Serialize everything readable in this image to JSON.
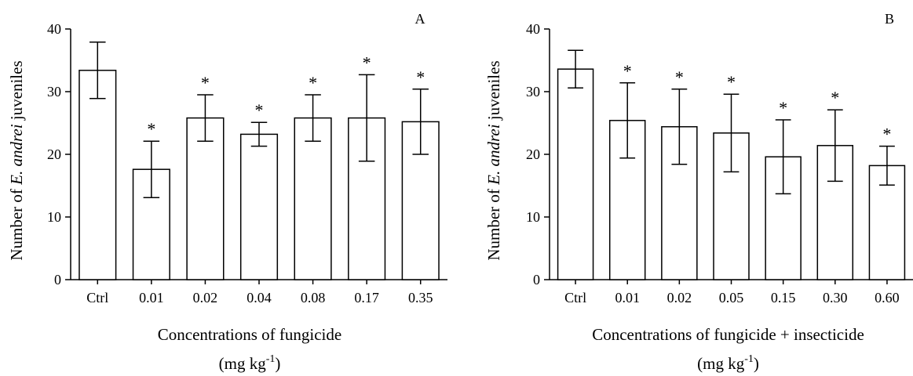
{
  "chart_data": [
    {
      "type": "bar",
      "panel_label": "A",
      "categories": [
        "Ctrl",
        "0.01",
        "0.02",
        "0.04",
        "0.08",
        "0.17",
        "0.35"
      ],
      "values": [
        33.4,
        17.6,
        25.8,
        23.2,
        25.8,
        25.8,
        25.2
      ],
      "error": [
        4.5,
        4.5,
        3.7,
        1.9,
        3.7,
        6.9,
        5.2
      ],
      "significant": [
        false,
        true,
        true,
        true,
        true,
        true,
        true
      ],
      "sig_marker": "*",
      "ylabel": {
        "pre": "Number of ",
        "italic": "E. andrei",
        "post": " juveniles"
      },
      "xlabel": "Concentrations of fungicide",
      "xlabel_unit": {
        "base": "(mg kg",
        "sup": "-1",
        "close": ")"
      },
      "yticks": [
        0,
        10,
        20,
        30,
        40
      ],
      "ylim": [
        0,
        40
      ]
    },
    {
      "type": "bar",
      "panel_label": "B",
      "categories": [
        "Ctrl",
        "0.01",
        "0.02",
        "0.05",
        "0.15",
        "0.30",
        "0.60"
      ],
      "values": [
        33.6,
        25.4,
        24.4,
        23.4,
        19.6,
        21.4,
        18.2
      ],
      "error": [
        3.0,
        6.0,
        6.0,
        6.2,
        5.9,
        5.7,
        3.1
      ],
      "significant": [
        false,
        true,
        true,
        true,
        true,
        true,
        true
      ],
      "sig_marker": "*",
      "ylabel": {
        "pre": "Number of ",
        "italic": "E. andrei",
        "post": " juveniles"
      },
      "xlabel": "Concentrations of fungicide + insecticide",
      "xlabel_unit": {
        "base": "(mg kg",
        "sup": "-1",
        "close": ")"
      },
      "yticks": [
        0,
        10,
        20,
        30,
        40
      ],
      "ylim": [
        0,
        40
      ]
    }
  ]
}
